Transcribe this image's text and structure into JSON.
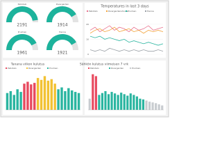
{
  "gauges": [
    {
      "label": "Pellotalo",
      "value": 2191,
      "max": 2300
    },
    {
      "label": "Rivergarden",
      "value": 1914,
      "max": 2300
    },
    {
      "label": "Pruimen",
      "value": 1961,
      "max": 2300
    },
    {
      "label": "Hanna",
      "value": 1921,
      "max": 2300
    }
  ],
  "line_chart": {
    "type": "line",
    "title": "Temperatures in last 3 days",
    "ylim": [
      0,
      25
    ],
    "yticks": [
      0,
      10,
      20
    ],
    "series": [
      {
        "name": "Pellotalo",
        "color": "#e8718d",
        "values": [
          16,
          18,
          15,
          17,
          19,
          16,
          18,
          17,
          15,
          18,
          16,
          17,
          19,
          16,
          17,
          18
        ]
      },
      {
        "name": "Rivergardenshouse",
        "color": "#f2a33a",
        "values": [
          14,
          16,
          17,
          15,
          16,
          18,
          15,
          16,
          17,
          15,
          16,
          14,
          16,
          15,
          16,
          15
        ]
      },
      {
        "name": "Pruimen",
        "color": "#2ab5a0",
        "values": [
          12,
          11,
          12,
          10,
          11,
          10,
          9,
          10,
          8,
          9,
          8,
          7,
          8,
          7,
          6,
          7
        ]
      },
      {
        "name": "Hanna",
        "color": "#9aa0a6",
        "values": [
          3,
          2,
          3,
          2,
          4,
          3,
          2,
          3,
          2,
          3,
          2,
          3,
          2,
          2,
          3,
          2
        ]
      }
    ]
  },
  "bar_chart_1": {
    "type": "bar",
    "title": "Tanana viikon kulutus",
    "ylim": [
      0,
      100
    ],
    "legend": [
      {
        "name": "Pellotalo",
        "color": "#e84a5f"
      },
      {
        "name": "Rivergarden",
        "color": "#f2c233"
      },
      {
        "name": "Pruimen",
        "color": "#2ab5a0"
      }
    ],
    "values": [
      45,
      50,
      40,
      55,
      48,
      70,
      75,
      68,
      72,
      85,
      80,
      90,
      78,
      82,
      70,
      55,
      60,
      50,
      58,
      52,
      48,
      45
    ],
    "colors": [
      "#2ab5a0",
      "#2ab5a0",
      "#2ab5a0",
      "#2ab5a0",
      "#2ab5a0",
      "#e84a5f",
      "#e84a5f",
      "#e84a5f",
      "#e84a5f",
      "#f2c233",
      "#f2c233",
      "#f2c233",
      "#f2c233",
      "#f2c233",
      "#f2c233",
      "#2ab5a0",
      "#2ab5a0",
      "#2ab5a0",
      "#2ab5a0",
      "#2ab5a0",
      "#2ab5a0",
      "#2ab5a0"
    ]
  },
  "bar_chart_2": {
    "type": "bar",
    "title": "Sähkön kulutus viimeisen 7 vrk",
    "ylim": [
      0,
      100
    ],
    "legend": [
      {
        "name": "Pellotalo",
        "color": "#e84a5f"
      },
      {
        "name": "Rivergarden",
        "color": "#2ab5a0"
      },
      {
        "name": "Pruimen",
        "color": "#c8ccd0"
      }
    ],
    "values": [
      30,
      95,
      90,
      40,
      45,
      50,
      42,
      48,
      44,
      40,
      46,
      42,
      38,
      44,
      40,
      36,
      30,
      28,
      25,
      22,
      20,
      18,
      15,
      12
    ],
    "colors": [
      "#c8ccd0",
      "#e84a5f",
      "#e84a5f",
      "#2ab5a0",
      "#2ab5a0",
      "#2ab5a0",
      "#2ab5a0",
      "#2ab5a0",
      "#2ab5a0",
      "#2ab5a0",
      "#2ab5a0",
      "#2ab5a0",
      "#2ab5a0",
      "#2ab5a0",
      "#2ab5a0",
      "#2ab5a0",
      "#2ab5a0",
      "#2ab5a0",
      "#c8ccd0",
      "#c8ccd0",
      "#c8ccd0",
      "#c8ccd0",
      "#c8ccd0",
      "#c8ccd0"
    ]
  }
}
